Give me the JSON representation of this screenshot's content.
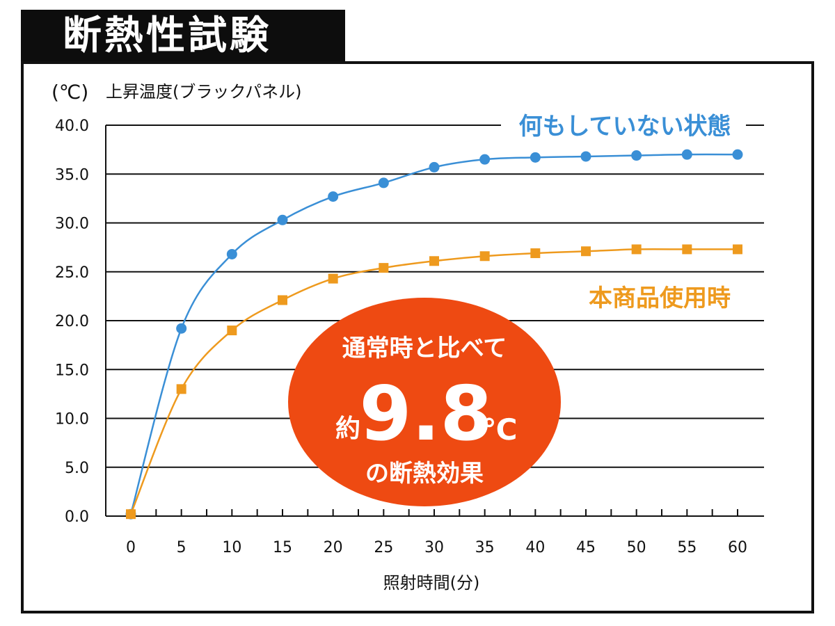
{
  "header": {
    "title": "断熱性試験"
  },
  "chart_data": {
    "type": "line",
    "unit_label": "(℃)",
    "ylabel": "上昇温度(ブラックパネル)",
    "xlabel": "照射時間(分)",
    "x": [
      0,
      5,
      10,
      15,
      20,
      25,
      30,
      35,
      40,
      45,
      50,
      55,
      60
    ],
    "x_ticks": [
      "0",
      "5",
      "10",
      "15",
      "20",
      "25",
      "30",
      "35",
      "40",
      "45",
      "50",
      "55",
      "60"
    ],
    "y_ticks": [
      "0.0",
      "5.0",
      "10.0",
      "15.0",
      "20.0",
      "25.0",
      "30.0",
      "35.0",
      "40.0"
    ],
    "ylim": [
      0,
      40
    ],
    "xlim": [
      0,
      60
    ],
    "grid": true,
    "series": [
      {
        "name": "何もしていない状態",
        "color": "#3a8fd6",
        "marker": "circle",
        "values": [
          0.2,
          19.2,
          26.8,
          30.3,
          32.7,
          34.1,
          35.7,
          36.5,
          36.7,
          36.8,
          36.9,
          37.0,
          37.0
        ]
      },
      {
        "name": "本商品使用時",
        "color": "#ee9a1e",
        "marker": "square",
        "values": [
          0.2,
          13.0,
          19.0,
          22.1,
          24.3,
          25.4,
          26.1,
          26.6,
          26.9,
          27.1,
          27.3,
          27.3,
          27.3
        ]
      }
    ],
    "callout": {
      "line1": "通常時と比べて",
      "prefix": "約",
      "value": "9.8",
      "unit": "℃",
      "line3": "の断熱効果",
      "color": "#ee4a12"
    }
  }
}
